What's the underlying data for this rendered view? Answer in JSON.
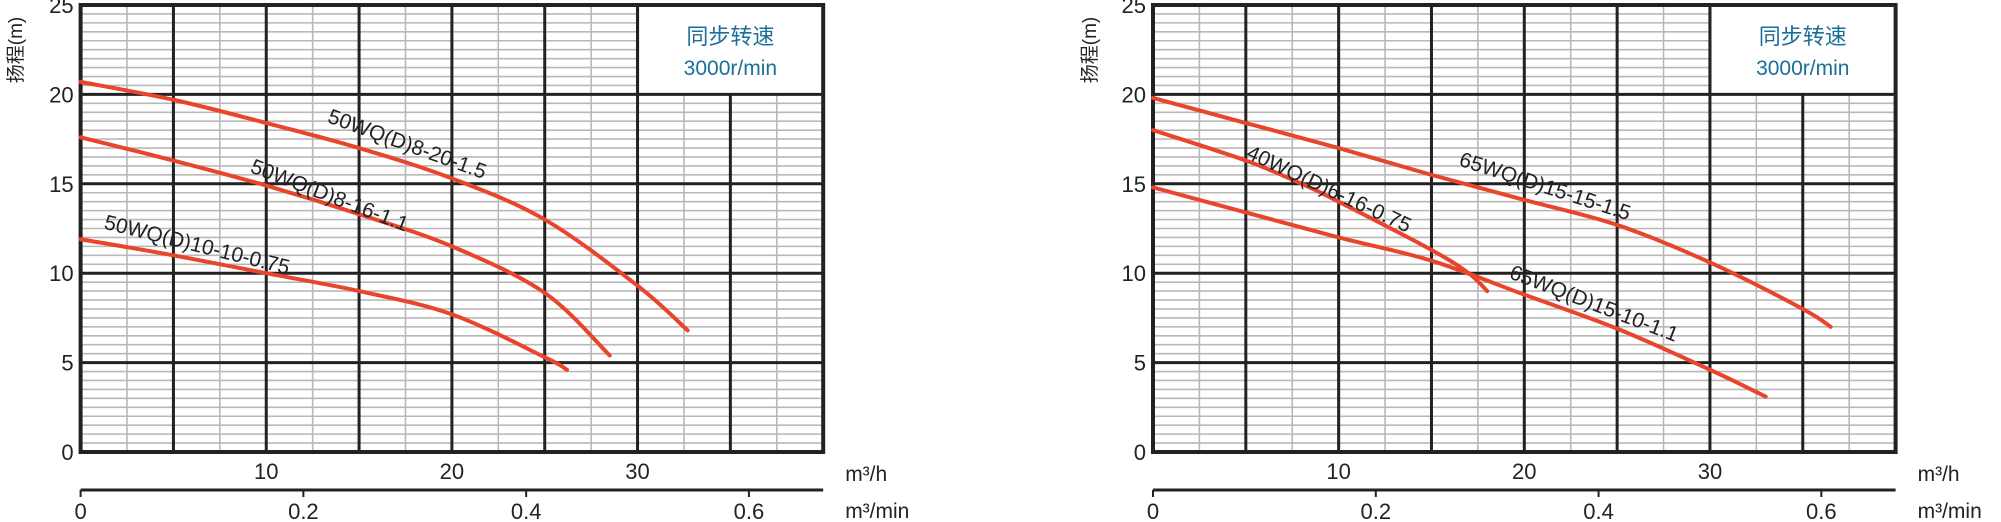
{
  "chart_data": [
    {
      "type": "line",
      "ylabel": "扬程(m)",
      "xlabel": "m³/h",
      "x2label": "m³/min",
      "xlim": [
        0,
        40
      ],
      "ylim": [
        0,
        25
      ],
      "x_ticks": [
        "10",
        "20",
        "30"
      ],
      "x2_ticks": [
        "0",
        "0.2",
        "0.4",
        "0.6"
      ],
      "y_ticks": [
        "0",
        "5",
        "10",
        "15",
        "20",
        "25"
      ],
      "grid": true,
      "info_box": {
        "line1": "同步转速",
        "line2": "3000r/min"
      },
      "line_color": "#e8452c",
      "series": [
        {
          "name": "50WQ(D)8-20-1.5",
          "points": [
            [
              0,
              20.7
            ],
            [
              5,
              19.7
            ],
            [
              10,
              18.4
            ],
            [
              15,
              17.0
            ],
            [
              20,
              15.3
            ],
            [
              25,
              13.0
            ],
            [
              30,
              9.3
            ],
            [
              32.7,
              6.8
            ]
          ]
        },
        {
          "name": "50WQ(D)8-16-1.1",
          "points": [
            [
              0,
              17.6
            ],
            [
              5,
              16.3
            ],
            [
              10,
              14.9
            ],
            [
              15,
              13.3
            ],
            [
              20,
              11.5
            ],
            [
              25,
              8.9
            ],
            [
              28.5,
              5.4
            ]
          ]
        },
        {
          "name": "50WQ(D)10-10-0.75",
          "points": [
            [
              0,
              11.9
            ],
            [
              5,
              11.0
            ],
            [
              10,
              10.0
            ],
            [
              15,
              9.0
            ],
            [
              20,
              7.7
            ],
            [
              25,
              5.3
            ],
            [
              26.2,
              4.6
            ]
          ]
        }
      ]
    },
    {
      "type": "line",
      "ylabel": "扬程(m)",
      "xlabel": "m³/h",
      "x2label": "m³/min",
      "xlim": [
        0,
        40
      ],
      "ylim": [
        0,
        25
      ],
      "x_ticks": [
        "10",
        "20",
        "30"
      ],
      "x2_ticks": [
        "0",
        "0.2",
        "0.4",
        "0.6"
      ],
      "y_ticks": [
        "0",
        "5",
        "10",
        "15",
        "20",
        "25"
      ],
      "grid": true,
      "info_box": {
        "line1": "同步转速",
        "line2": "3000r/min"
      },
      "line_color": "#e8452c",
      "series": [
        {
          "name": "65WQ(D)15-15-1.5",
          "points": [
            [
              0,
              19.8
            ],
            [
              5,
              18.4
            ],
            [
              10,
              17.0
            ],
            [
              15,
              15.5
            ],
            [
              20,
              14.1
            ],
            [
              25,
              12.7
            ],
            [
              30,
              10.6
            ],
            [
              35,
              8.0
            ],
            [
              36.5,
              7.0
            ]
          ]
        },
        {
          "name": "40WQ(D)6-16-0.75",
          "points": [
            [
              0,
              18.0
            ],
            [
              5,
              16.3
            ],
            [
              8,
              15.0
            ],
            [
              10,
              14.0
            ],
            [
              15,
              11.3
            ],
            [
              17,
              10.0
            ],
            [
              18,
              9.0
            ]
          ]
        },
        {
          "name": "65WQ(D)15-10-1.1",
          "points": [
            [
              0,
              14.8
            ],
            [
              5,
              13.4
            ],
            [
              10,
              12.0
            ],
            [
              15,
              10.7
            ],
            [
              20,
              8.8
            ],
            [
              25,
              6.9
            ],
            [
              30,
              4.6
            ],
            [
              33,
              3.1
            ]
          ]
        }
      ]
    }
  ]
}
